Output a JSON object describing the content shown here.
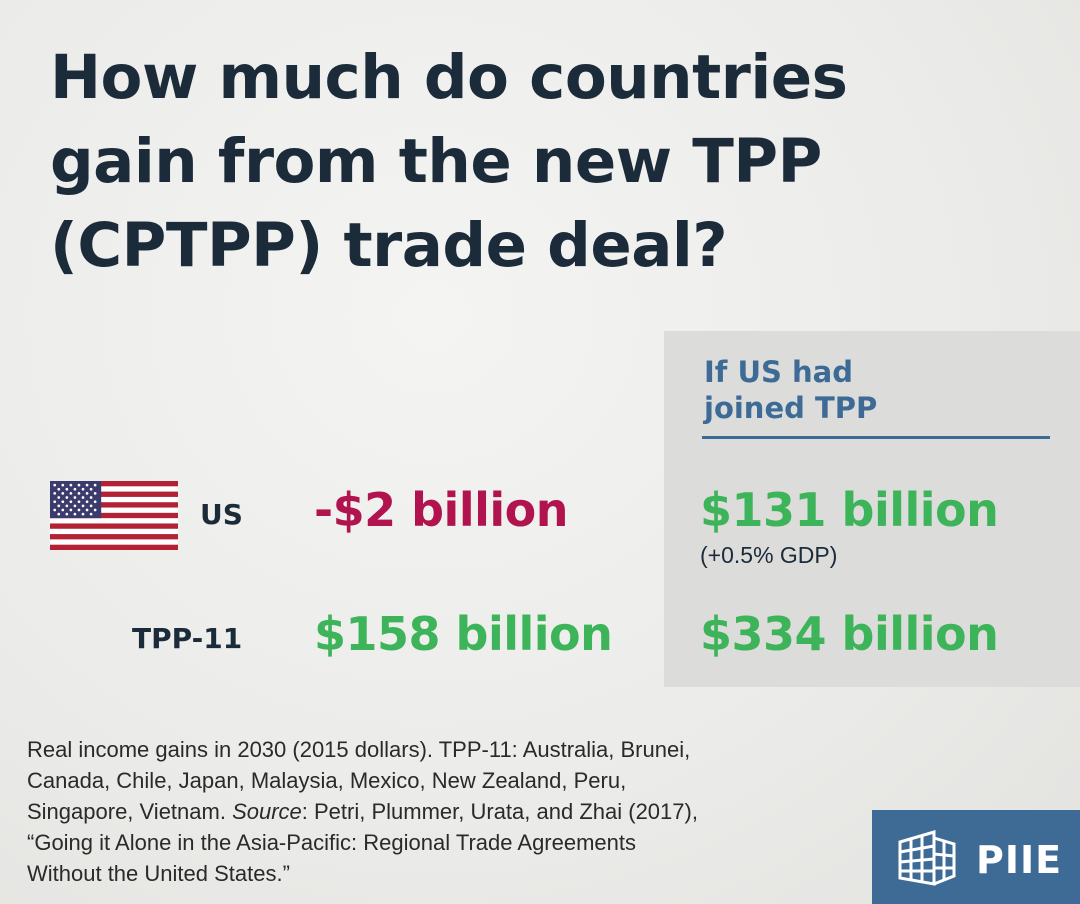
{
  "title": {
    "line1": "How much do countries",
    "line2": "gain from the new TPP",
    "line3": "(CPTPP) trade deal?"
  },
  "panel": {
    "heading_line1": "If US had",
    "heading_line2": "joined TPP",
    "background": "#dcdcdb",
    "heading_color": "#3d6b96"
  },
  "rows": [
    {
      "label": "US",
      "icon": "us-flag-icon",
      "actual": "-$2 billion",
      "hypothetical": "$131 billion",
      "hypothetical_note": "(+0.5% GDP)"
    },
    {
      "label": "TPP-11",
      "actual": "$158 billion",
      "hypothetical": "$334 billion"
    }
  ],
  "colors": {
    "title": "#1c2b3a",
    "negative": "#b0134d",
    "positive": "#3db35a",
    "brand": "#3d6b96"
  },
  "footnote": {
    "line1": "Real income gains in 2030 (2015 dollars). TPP-11: Australia, Brunei,",
    "line2": "Canada, Chile, Japan, Malaysia, Mexico, New Zealand, Peru,",
    "line3_pre": "Singapore, Vietnam. ",
    "line3_source_label": "Source",
    "line3_post": ": Petri, Plummer, Urata, and Zhai (2017),",
    "line4": "“Going it Alone in the Asia-Pacific: Regional Trade Agreements",
    "line5": "Without the United States.”"
  },
  "logo": {
    "text": "PIIE",
    "icon": "piie-building-icon"
  }
}
